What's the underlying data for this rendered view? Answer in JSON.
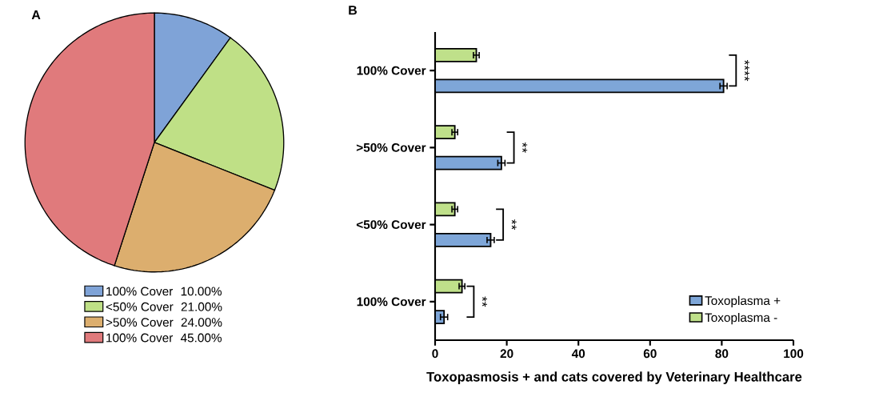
{
  "chart_data": [
    {
      "type": "pie",
      "title": "A",
      "categories": [
        "100% Cover",
        "<50% Cover",
        ">50% Cover",
        "100% Cover"
      ],
      "values": [
        10,
        21,
        24,
        45
      ],
      "value_labels": [
        "10.00%",
        "21.00%",
        "24.00%",
        "45.00%"
      ],
      "colors": [
        "#7fa3d7",
        "#bfe086",
        "#dcae6e",
        "#e07a7c"
      ],
      "legend": "bottom"
    },
    {
      "type": "bar",
      "title": "B",
      "orientation": "horizontal",
      "categories": [
        "100% Cover",
        ">50% Cover",
        "<50% Cover",
        "100% Cover"
      ],
      "xlabel": "Toxopasmosis + and  cats covered by Veterinary Healthcare",
      "xlim": [
        0,
        100
      ],
      "xticks": [
        0,
        20,
        40,
        60,
        80,
        100
      ],
      "legend": "bottom right",
      "annotations": [
        "****",
        "**",
        "**",
        "**"
      ],
      "series": [
        {
          "name": "Toxoplasma +",
          "color": "#7ea6d8",
          "values": [
            80.5,
            18.5,
            15.5,
            2.5
          ],
          "errors": [
            1,
            1,
            1,
            1
          ]
        },
        {
          "name": "Toxoplasma -",
          "color": "#bfe08a",
          "values": [
            11.5,
            5.5,
            5.5,
            7.5
          ],
          "errors": [
            0.8,
            0.8,
            0.8,
            0.8
          ]
        }
      ]
    }
  ]
}
